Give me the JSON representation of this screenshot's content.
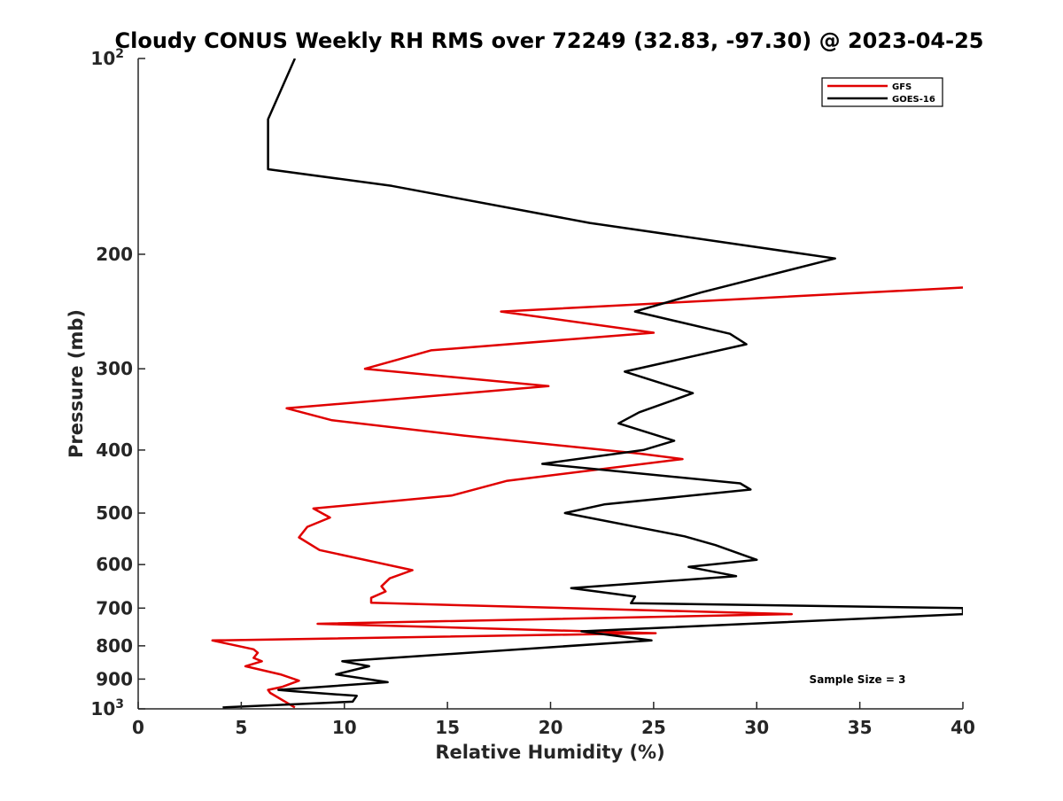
{
  "chart_data": {
    "type": "line",
    "title": "Cloudy CONUS Weekly RH RMS over 72249 (32.83, -97.30) @ 2023-04-25",
    "xlabel": "Relative Humidity (%)",
    "ylabel": "Pressure (mb)",
    "xlim": [
      0,
      40
    ],
    "ylim": [
      100,
      1000
    ],
    "y_scale": "log",
    "y_inverted": true,
    "grid": false,
    "legend_position": "top-right",
    "x_ticks": [
      0,
      5,
      10,
      15,
      20,
      25,
      30,
      35,
      40
    ],
    "x_tick_labels": [
      "0",
      "5",
      "10",
      "15",
      "20",
      "25",
      "30",
      "35",
      "40"
    ],
    "y_ticks": [
      100,
      200,
      300,
      400,
      500,
      600,
      700,
      800,
      900,
      1000
    ],
    "y_tick_labels": [
      "10^2",
      "200",
      "300",
      "400",
      "500",
      "600",
      "700",
      "800",
      "900",
      "10^3"
    ],
    "annotation": "Sample Size = 3",
    "series": [
      {
        "name": "GFS",
        "color": "#e00000",
        "points": [
          [
            7.6,
            995
          ],
          [
            6.4,
            945
          ],
          [
            6.3,
            935
          ],
          [
            7.0,
            925
          ],
          [
            7.8,
            905
          ],
          [
            6.9,
            885
          ],
          [
            5.2,
            860
          ],
          [
            6.0,
            845
          ],
          [
            5.6,
            835
          ],
          [
            5.8,
            820
          ],
          [
            5.6,
            810
          ],
          [
            3.6,
            785
          ],
          [
            25.1,
            765
          ],
          [
            8.7,
            740
          ],
          [
            31.7,
            715
          ],
          [
            11.3,
            687
          ],
          [
            11.3,
            675
          ],
          [
            12.0,
            660
          ],
          [
            11.8,
            648
          ],
          [
            12.2,
            630
          ],
          [
            13.3,
            612
          ],
          [
            8.8,
            570
          ],
          [
            7.8,
            545
          ],
          [
            8.2,
            525
          ],
          [
            9.3,
            508
          ],
          [
            8.5,
            492
          ],
          [
            15.2,
            470
          ],
          [
            17.9,
            446
          ],
          [
            26.4,
            413
          ],
          [
            24.3,
            405
          ],
          [
            15.8,
            380
          ],
          [
            9.4,
            360
          ],
          [
            7.2,
            345
          ],
          [
            19.9,
            319
          ],
          [
            11.0,
            300
          ],
          [
            14.2,
            281
          ],
          [
            25.0,
            264
          ],
          [
            17.6,
            245
          ],
          [
            40.0,
            225
          ]
        ]
      },
      {
        "name": "GOES-16",
        "color": "#000000",
        "points": [
          [
            4.1,
            995
          ],
          [
            10.4,
            975
          ],
          [
            10.6,
            955
          ],
          [
            7.6,
            940
          ],
          [
            6.8,
            935
          ],
          [
            12.1,
            910
          ],
          [
            9.6,
            885
          ],
          [
            11.2,
            860
          ],
          [
            9.9,
            845
          ],
          [
            24.9,
            785
          ],
          [
            21.5,
            760
          ],
          [
            40.0,
            715
          ],
          [
            40.0,
            700
          ],
          [
            23.9,
            688
          ],
          [
            24.1,
            672
          ],
          [
            21.0,
            652
          ],
          [
            29.0,
            625
          ],
          [
            26.7,
            605
          ],
          [
            30.0,
            590
          ],
          [
            28.0,
            560
          ],
          [
            26.5,
            543
          ],
          [
            20.7,
            500
          ],
          [
            22.6,
            485
          ],
          [
            29.7,
            460
          ],
          [
            29.2,
            450
          ],
          [
            19.6,
            420
          ],
          [
            24.5,
            400
          ],
          [
            26.0,
            387
          ],
          [
            23.3,
            364
          ],
          [
            24.3,
            350
          ],
          [
            26.9,
            327
          ],
          [
            23.6,
            303
          ],
          [
            29.5,
            275
          ],
          [
            28.7,
            265
          ],
          [
            24.1,
            245
          ],
          [
            27.3,
            229
          ],
          [
            33.8,
            203
          ],
          [
            21.9,
            179
          ],
          [
            12.3,
            157
          ],
          [
            6.3,
            148
          ],
          [
            6.3,
            124
          ],
          [
            7.6,
            100
          ]
        ]
      }
    ]
  }
}
